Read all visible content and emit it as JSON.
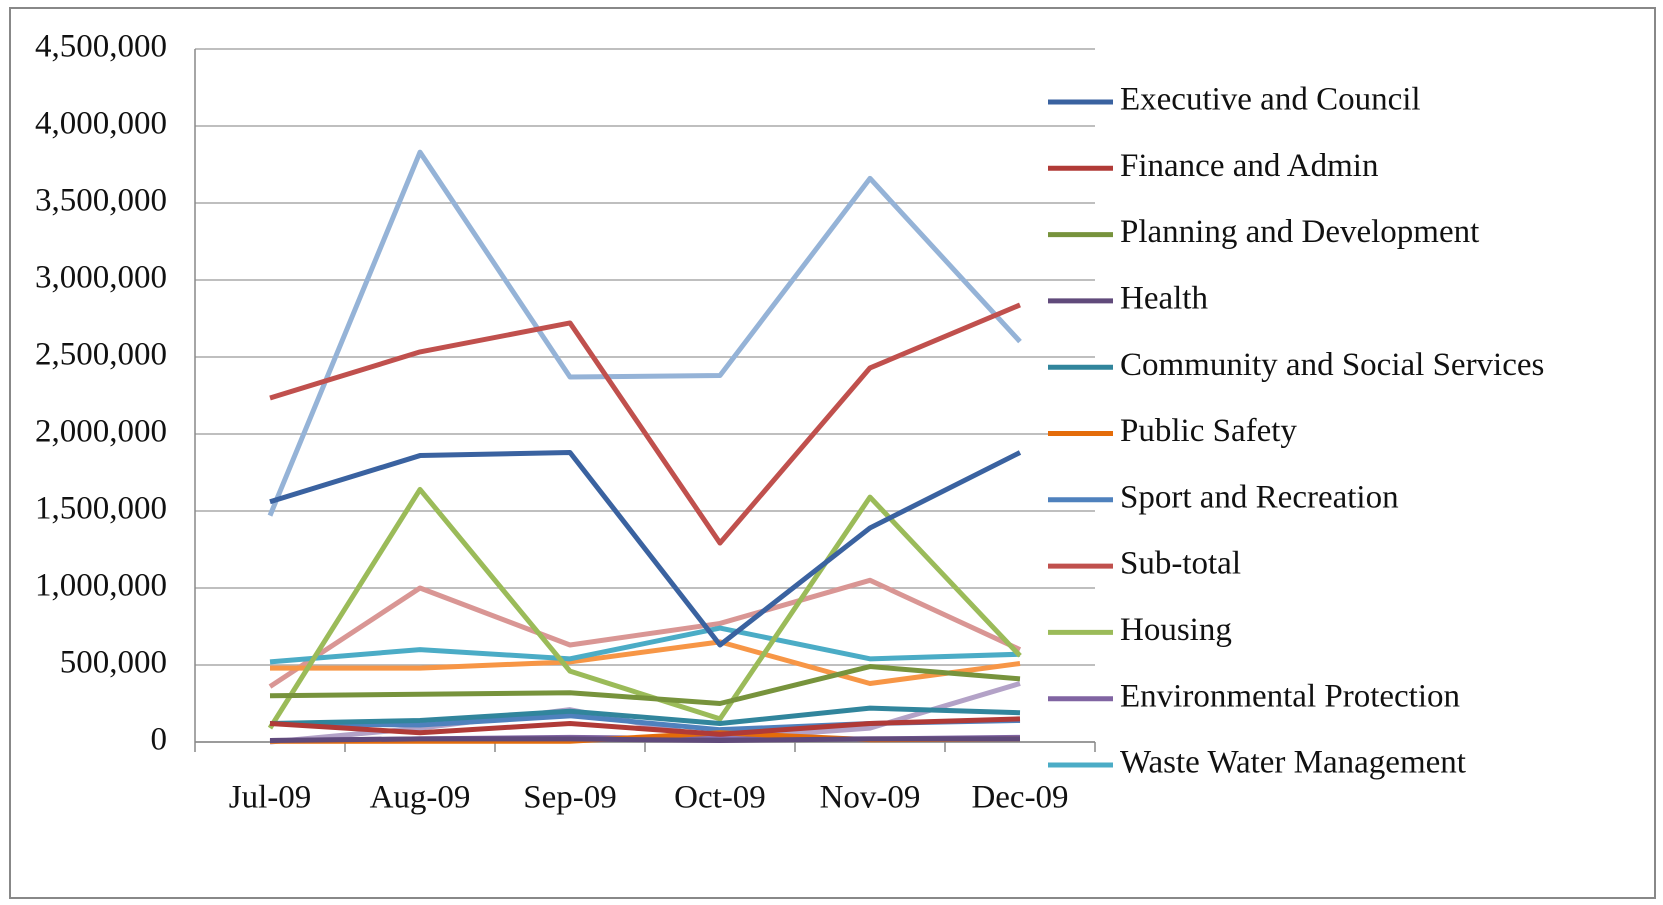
{
  "chart_data": {
    "type": "line",
    "categories": [
      "Jul-09",
      "Aug-09",
      "Sep-09",
      "Oct-09",
      "Nov-09",
      "Dec-09"
    ],
    "series": [
      {
        "name": "Executive and Council",
        "color": "#3a62a0",
        "values": [
          1560000,
          1860000,
          1880000,
          630000,
          1390000,
          1880000
        ]
      },
      {
        "name": "Finance and Admin",
        "color": "#b03a37",
        "values": [
          120000,
          60000,
          120000,
          50000,
          120000,
          150000
        ]
      },
      {
        "name": "Planning and Development",
        "color": "#77933c",
        "values": [
          300000,
          310000,
          320000,
          250000,
          490000,
          410000
        ]
      },
      {
        "name": "Health",
        "color": "#604a7b",
        "values": [
          10000,
          20000,
          20000,
          10000,
          20000,
          20000
        ]
      },
      {
        "name": "Community and Social Services",
        "color": "#31859c",
        "values": [
          120000,
          140000,
          200000,
          120000,
          220000,
          190000
        ]
      },
      {
        "name": "Public Safety",
        "color": "#e46c0a",
        "values": [
          5000,
          5000,
          5000,
          60000,
          15000,
          20000
        ]
      },
      {
        "name": "Sport and Recreation",
        "color": "#4f81bd",
        "values": [
          120000,
          110000,
          170000,
          80000,
          120000,
          140000
        ]
      },
      {
        "name": "Sub-total",
        "color": "#c0504d",
        "values": [
          2234000,
          2533000,
          2721000,
          1292000,
          2429000,
          2838000
        ]
      },
      {
        "name": "Housing",
        "color": "#9bbb59",
        "values": [
          90000,
          1640000,
          460000,
          150000,
          1590000,
          560000
        ]
      },
      {
        "name": "Environmental Protection",
        "color": "#8064a2",
        "values": [
          10000,
          20000,
          30000,
          20000,
          20000,
          30000
        ]
      },
      {
        "name": "Waste Water Management",
        "color": "#4bacc6",
        "values": [
          520000,
          600000,
          540000,
          740000,
          540000,
          570000
        ]
      },
      {
        "name": null,
        "color": "#f79646",
        "values": [
          480000,
          480000,
          520000,
          650000,
          380000,
          510000
        ]
      },
      {
        "name": null,
        "color": "#95b3d7",
        "values": [
          1470000,
          3830000,
          2370000,
          2380000,
          3660000,
          2600000
        ]
      },
      {
        "name": null,
        "color": "#d99694",
        "values": [
          360000,
          1000000,
          630000,
          770000,
          1050000,
          600000
        ]
      },
      {
        "name": null,
        "color": "#b3a2c7",
        "values": [
          0,
          90000,
          210000,
          20000,
          90000,
          380000
        ]
      }
    ],
    "ylim": [
      0,
      4500000
    ],
    "yticks": [
      0,
      {
        "value": 500000,
        "label": "500,000"
      },
      {
        "value": 1000000,
        "label": "1,000,000"
      },
      {
        "value": 1500000,
        "label": "1,500,000"
      },
      {
        "value": 2000000,
        "label": "2,000,000"
      },
      {
        "value": 2500000,
        "label": "2,500,000"
      },
      {
        "value": 3000000,
        "label": "3,000,000"
      },
      {
        "value": 3500000,
        "label": "3,500,000"
      },
      {
        "value": 4000000,
        "label": "4,000,000"
      },
      {
        "value": 4500000,
        "label": "4,500,000"
      }
    ],
    "grid": true,
    "legend": "right"
  }
}
